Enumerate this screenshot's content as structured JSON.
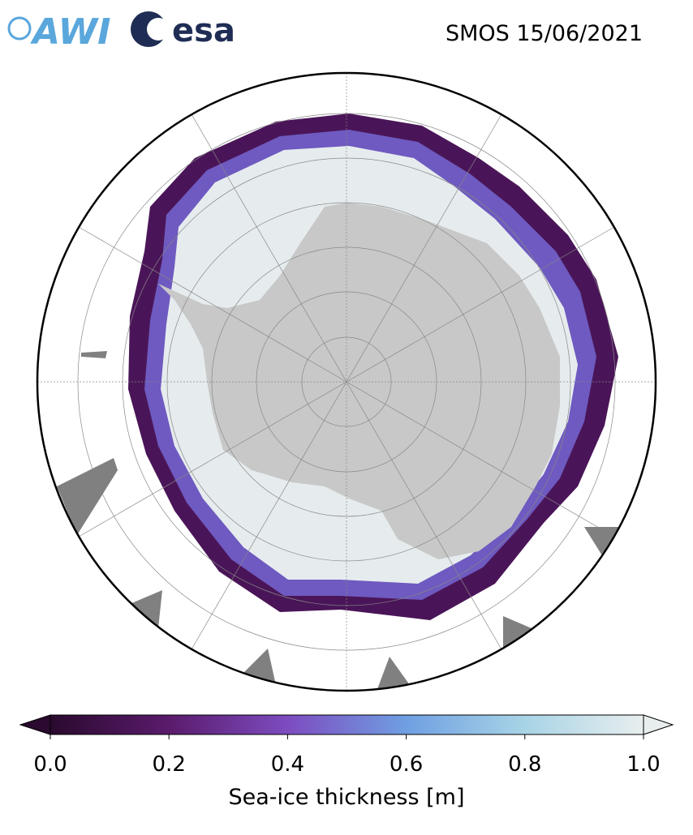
{
  "header": {
    "logos": [
      "AWI",
      "esa"
    ],
    "title": "SMOS 15/06/2021"
  },
  "colorbar": {
    "label": "Sea-ice thickness [m]",
    "lim": [
      0,
      1
    ],
    "ticks": [
      {
        "value": 0,
        "label": "0.0"
      },
      0.2,
      0.4,
      0.6,
      0.8,
      {
        "value": 1,
        "label": "1.0"
      }
    ],
    "colors": [
      "#2a0a2e",
      "#5a1b6c",
      "#7d4cc0",
      "#6f9fe2",
      "#a8d4e6",
      "#e8eeee"
    ]
  }
}
